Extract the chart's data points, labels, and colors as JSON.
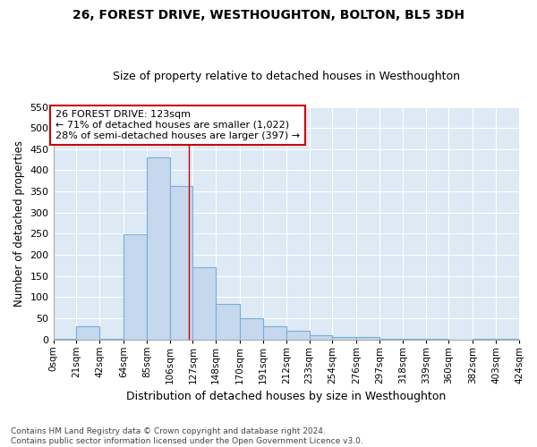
{
  "title1": "26, FOREST DRIVE, WESTHOUGHTON, BOLTON, BL5 3DH",
  "title2": "Size of property relative to detached houses in Westhoughton",
  "xlabel": "Distribution of detached houses by size in Westhoughton",
  "ylabel": "Number of detached properties",
  "footnote1": "Contains HM Land Registry data © Crown copyright and database right 2024.",
  "footnote2": "Contains public sector information licensed under the Open Government Licence v3.0.",
  "annotation_line1": "26 FOREST DRIVE: 123sqm",
  "annotation_line2": "← 71% of detached houses are smaller (1,022)",
  "annotation_line3": "28% of semi-detached houses are larger (397) →",
  "bar_color": "#c5d8ee",
  "bar_edge_color": "#7aafd4",
  "ref_line_color": "#cc0000",
  "ref_line_x": 123,
  "bins": [
    0,
    21,
    42,
    64,
    85,
    106,
    127,
    148,
    170,
    191,
    212,
    233,
    254,
    276,
    297,
    318,
    339,
    360,
    382,
    403,
    424
  ],
  "counts": [
    1,
    30,
    2,
    249,
    430,
    363,
    170,
    83,
    50,
    30,
    20,
    10,
    5,
    5,
    2,
    2,
    1,
    0,
    1,
    1
  ],
  "ylim": [
    0,
    550
  ],
  "yticks": [
    0,
    50,
    100,
    150,
    200,
    250,
    300,
    350,
    400,
    450,
    500,
    550
  ],
  "fig_bg_color": "#ffffff",
  "plot_bg_color": "#dde9f5",
  "grid_color": "#ffffff",
  "title_fontsize": 10,
  "subtitle_fontsize": 9
}
